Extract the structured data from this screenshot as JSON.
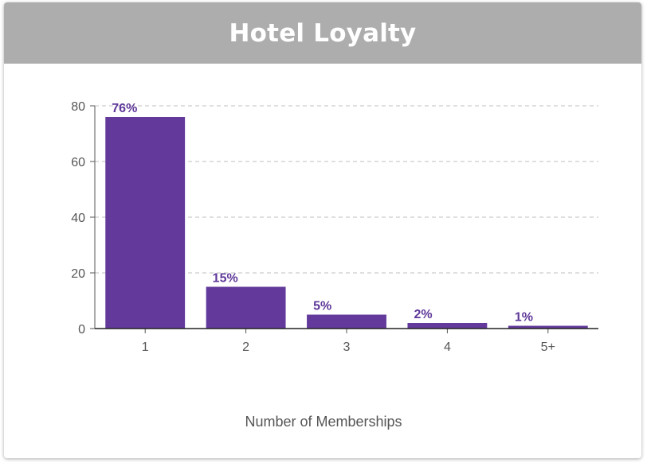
{
  "card": {
    "title": "Hotel Loyalty"
  },
  "chart_data": {
    "type": "bar",
    "title": "Hotel Loyalty",
    "categories": [
      "1",
      "2",
      "3",
      "4",
      "5+"
    ],
    "values": [
      76,
      15,
      5,
      2,
      1
    ],
    "data_labels": [
      "76%",
      "15%",
      "5%",
      "2%",
      "1%"
    ],
    "xlabel": "Number of Memberships",
    "ylabel": "",
    "ylim": [
      0,
      80
    ],
    "yticks": [
      "0",
      "20",
      "40",
      "60",
      "80"
    ],
    "grid": true,
    "colors": {
      "bar": "#633a9b",
      "label": "#5e3799",
      "grid": "#cccccc",
      "axis": "#222222"
    }
  }
}
